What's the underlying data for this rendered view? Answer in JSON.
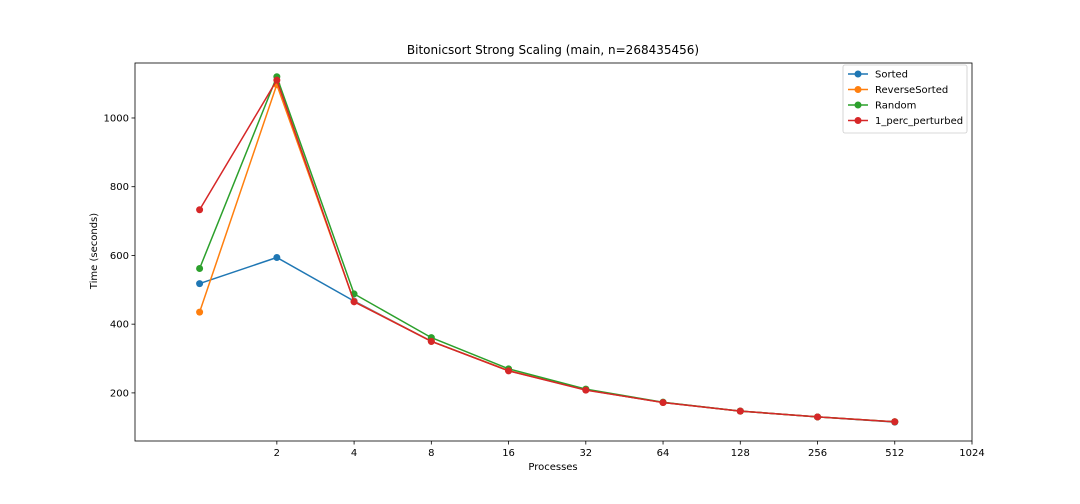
{
  "chart_data": {
    "type": "line",
    "title": "Bitonicsort Strong Scaling (main, n=268435456)",
    "xlabel": "Processes",
    "ylabel": "Time (seconds)",
    "x_scale": "log2",
    "x_ticks": [
      2,
      4,
      8,
      16,
      32,
      64,
      128,
      256,
      512,
      1024
    ],
    "y_ticks": [
      200,
      400,
      600,
      800,
      1000
    ],
    "xlim": [
      0.56,
      1024
    ],
    "ylim": [
      60,
      1160
    ],
    "legend_position": "top-right",
    "grid": false,
    "x": [
      1,
      2,
      4,
      8,
      16,
      32,
      64,
      128,
      256,
      512
    ],
    "series": [
      {
        "name": "Sorted",
        "color": "#1f77b4",
        "values": [
          518,
          594,
          467,
          350,
          265,
          209,
          172,
          147,
          130,
          115
        ]
      },
      {
        "name": "ReverseSorted",
        "color": "#ff7f0e",
        "values": [
          435,
          1097,
          466,
          350,
          265,
          209,
          172,
          147,
          130,
          116
        ]
      },
      {
        "name": "Random",
        "color": "#2ca02c",
        "values": [
          562,
          1120,
          488,
          361,
          270,
          211,
          173,
          147,
          130,
          116
        ]
      },
      {
        "name": "1_perc_perturbed",
        "color": "#d62728",
        "values": [
          733,
          1110,
          465,
          350,
          264,
          208,
          172,
          147,
          130,
          116
        ]
      }
    ]
  }
}
